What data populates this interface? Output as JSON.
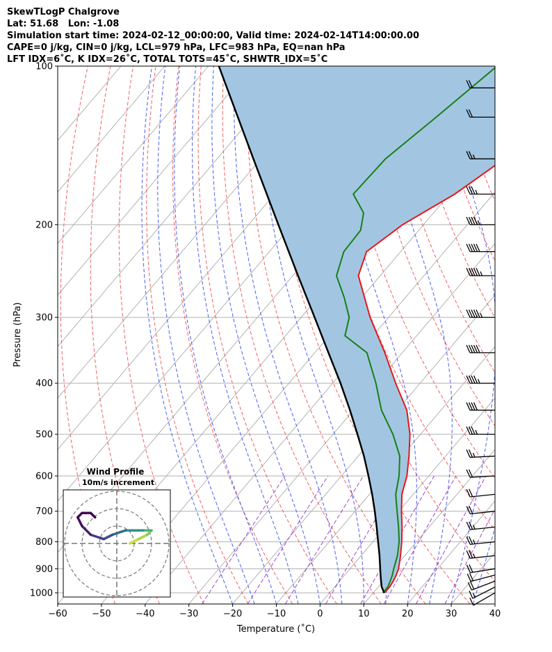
{
  "header": {
    "line1": "SkewTLogP Chalgrove",
    "line2": "Lat: 51.68   Lon: -1.08",
    "line3": "Simulation start time: 2024-02-12_00:00:00, Valid time: 2024-02-14T14:00:00.00",
    "line4": "CAPE=0 j/kg, CIN=0 j/kg, LCL=979 hPa, LFC=983 hPa, EQ=nan hPa",
    "line5": "LFT IDX=6˚C, K IDX=26˚C, TOTAL TOTS=45˚C, SHWTR_IDX=5˚C"
  },
  "colors": {
    "temperature": "#e8141a",
    "dewpoint": "#158015",
    "parcel": "#000000",
    "cape_fill": "#a2c6e1",
    "dry_adiabat": "#f06060",
    "moist_adiabat": "#4a5ef0",
    "mixing_ratio": "#9a48c8",
    "isotherm": "#aaaaaa",
    "grid": "#b0b0b0"
  },
  "chart_data": {
    "type": "line",
    "title": "SkewTLogP Chalgrove",
    "xlabel": "Temperature (˚C)",
    "ylabel": "Pressure (hPa)",
    "xlim": [
      -60,
      40
    ],
    "ylim": [
      1050,
      100
    ],
    "yscale": "log",
    "grid": true,
    "xticks": [
      "−60",
      "−50",
      "−40",
      "−30",
      "−20",
      "−10",
      "0",
      "10",
      "20",
      "30",
      "40"
    ],
    "yticks": [
      "100",
      "200",
      "300",
      "400",
      "500",
      "600",
      "700",
      "800",
      "900",
      "1000"
    ],
    "series": [
      {
        "name": "Temperature",
        "pressure": [
          1000,
          975,
          950,
          925,
          900,
          850,
          800,
          750,
          700,
          650,
          600,
          550,
          500,
          450,
          400,
          350,
          300,
          250,
          225,
          200,
          175,
          150,
          125,
          110,
          100
        ],
        "temp": [
          12.5,
          12.6,
          12.3,
          11.8,
          11.1,
          9.0,
          6.6,
          3.8,
          0.6,
          -2.6,
          -5.0,
          -8.4,
          -12.4,
          -17.8,
          -25.6,
          -34.0,
          -44.2,
          -55.0,
          -57.8,
          -54.8,
          -48.8,
          -44.3,
          -41.6,
          -38.7,
          -37.0
        ]
      },
      {
        "name": "Dewpoint",
        "pressure": [
          1000,
          975,
          950,
          925,
          900,
          850,
          800,
          750,
          700,
          650,
          600,
          550,
          500,
          450,
          400,
          350,
          325,
          300,
          275,
          250,
          225,
          205,
          190,
          175,
          150,
          125,
          100
        ],
        "temp": [
          12.2,
          12.2,
          11.6,
          10.9,
          10.0,
          8.3,
          6.0,
          3.0,
          -0.4,
          -4.0,
          -6.8,
          -10.5,
          -16.3,
          -23.6,
          -30.1,
          -38.1,
          -46.4,
          -49.0,
          -54.0,
          -60.0,
          -63.0,
          -63.3,
          -66.0,
          -72.0,
          -71.5,
          -68.0,
          -64.0
        ]
      },
      {
        "name": "Parcel",
        "pressure": [
          1000,
          975,
          950,
          925,
          900,
          850,
          800,
          750,
          700,
          650,
          600,
          550,
          500,
          450,
          400,
          350,
          300,
          250,
          200,
          150,
          100
        ],
        "temp": [
          12.5,
          10.8,
          9.5,
          8.2,
          6.9,
          4.2,
          1.2,
          -2.0,
          -5.5,
          -9.4,
          -13.8,
          -18.7,
          -24.4,
          -30.8,
          -38.2,
          -46.9,
          -56.9,
          -68.8,
          -83.2,
          -101.7,
          -127.6
        ]
      }
    ],
    "wind_barbs": {
      "pressure": [
        1000,
        975,
        950,
        925,
        900,
        850,
        800,
        750,
        700,
        650,
        600,
        550,
        500,
        450,
        400,
        350,
        300,
        250,
        225,
        200,
        175,
        150,
        125,
        110
      ],
      "speed_kt": [
        10,
        15,
        20,
        20,
        20,
        25,
        25,
        25,
        20,
        20,
        20,
        25,
        35,
        40,
        45,
        50,
        55,
        55,
        50,
        45,
        35,
        25,
        20,
        20
      ],
      "direction_deg": [
        220,
        225,
        235,
        245,
        255,
        260,
        260,
        260,
        260,
        260,
        265,
        265,
        270,
        270,
        270,
        270,
        270,
        270,
        270,
        270,
        270,
        270,
        270,
        270
      ]
    },
    "hodograph": {
      "title": "Wind Profile",
      "subtitle": "10m/s increment",
      "u": [
        3,
        5,
        7,
        8,
        6,
        2,
        -1,
        -3,
        -6,
        -8,
        -9,
        -8,
        -6,
        -5
      ],
      "v": [
        0,
        1,
        2,
        3,
        3,
        3,
        2,
        1,
        2,
        4,
        6,
        7,
        7,
        6
      ]
    }
  }
}
